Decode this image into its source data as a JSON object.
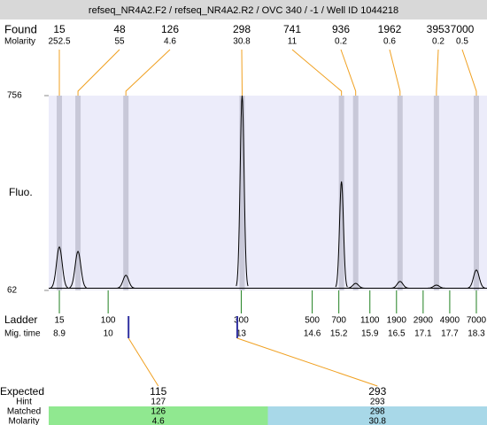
{
  "title": "refseq_NR4A2.F2 / refseq_NR4A2.R2 / OVC 340 / -1 / Well ID 1044218",
  "found": {
    "label": "Found",
    "molarity_label": "Molarity",
    "peaks": [
      {
        "size": 15,
        "molarity": 252.5,
        "time": 8.9,
        "height": 217
      },
      {
        "size": 48,
        "molarity": 55,
        "time": 9.32,
        "height": 201
      },
      {
        "size": 126,
        "molarity": 4.6,
        "time": 10.4,
        "height": 116
      },
      {
        "size": 298,
        "molarity": 30.8,
        "time": 13.02,
        "height": 756
      },
      {
        "size": 741,
        "molarity": 11,
        "time": 15.26,
        "height": 450
      },
      {
        "size": 936,
        "molarity": 0.2,
        "time": 15.58,
        "height": 87
      },
      {
        "size": 1962,
        "molarity": 0.6,
        "time": 16.58,
        "height": 94
      },
      {
        "size": 3953,
        "molarity": 0.2,
        "time": 17.4,
        "height": 81
      },
      {
        "size": 7000,
        "molarity": 0.5,
        "time": 18.3,
        "height": 135
      }
    ]
  },
  "y_axis": {
    "label": "Fluo.",
    "ylim": [
      62,
      756
    ],
    "yticks": [
      62,
      756
    ],
    "baseline": 70
  },
  "xlim": [
    8.66,
    18.54
  ],
  "ladder": {
    "label": "Ladder",
    "time_label": "Mig. time",
    "peaks": [
      {
        "size": 15,
        "time": 8.9
      },
      {
        "size": 100,
        "time": 10
      },
      {
        "size": 300,
        "time": 13
      },
      {
        "size": 500,
        "time": 14.6
      },
      {
        "size": 700,
        "time": 15.2
      },
      {
        "size": 1100,
        "time": 15.9
      },
      {
        "size": 1900,
        "time": 16.5
      },
      {
        "size": 2900,
        "time": 17.1
      },
      {
        "size": 4900,
        "time": 17.7
      },
      {
        "size": 7000,
        "time": 18.3
      }
    ]
  },
  "expected": {
    "label": "Expected",
    "hint_label": "Hint",
    "matched_label": "Matched",
    "molarity_label": "Molarity",
    "items": [
      {
        "size": 115,
        "time": 10.46,
        "hint": 127,
        "matched": 126,
        "molarity": 4.6,
        "color": "#90e890"
      },
      {
        "size": 293,
        "time": 12.91,
        "hint": 293,
        "matched": 298,
        "molarity": 30.8,
        "color": "#a8d8e8"
      }
    ]
  }
}
